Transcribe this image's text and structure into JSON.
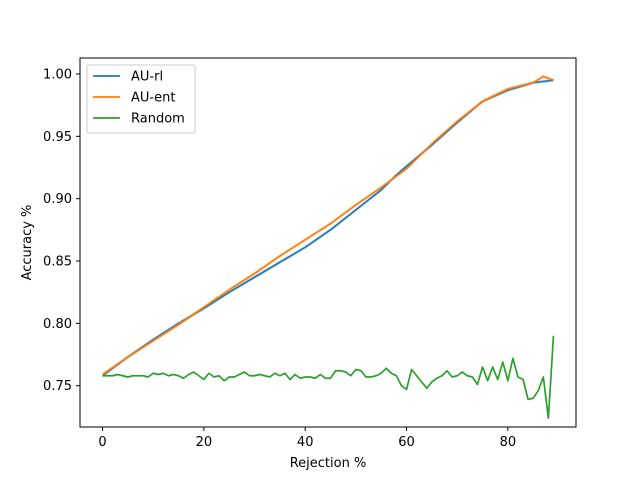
{
  "chart_data": {
    "type": "line",
    "title": "",
    "xlabel": "Rejection %",
    "ylabel": "Accuracy %",
    "xlim": [
      -4.45,
      93.45
    ],
    "ylim": [
      0.7169,
      1.0128
    ],
    "xticks": [
      0,
      20,
      40,
      60,
      80
    ],
    "yticks": [
      0.75,
      0.8,
      0.85,
      0.9,
      0.95,
      1.0
    ],
    "ytick_labels": [
      "0.75",
      "0.80",
      "0.85",
      "0.90",
      "0.95",
      "1.00"
    ],
    "grid": false,
    "legend_position": "top-left",
    "series": [
      {
        "name": "AU-rl",
        "color": "#1f77b4",
        "band": true,
        "x": [
          0,
          5,
          10,
          15,
          20,
          25,
          30,
          35,
          40,
          45,
          50,
          55,
          58,
          60,
          65,
          70,
          75,
          80,
          85,
          89
        ],
        "y": [
          0.758,
          0.773,
          0.787,
          0.8,
          0.812,
          0.825,
          0.837,
          0.849,
          0.861,
          0.875,
          0.891,
          0.907,
          0.919,
          0.926,
          0.943,
          0.961,
          0.978,
          0.987,
          0.993,
          0.995
        ]
      },
      {
        "name": "AU-ent",
        "color": "#ff7f0e",
        "band": true,
        "x": [
          0,
          5,
          10,
          15,
          20,
          25,
          30,
          35,
          40,
          45,
          50,
          55,
          58,
          60,
          65,
          70,
          75,
          80,
          85,
          87,
          89
        ],
        "y": [
          0.759,
          0.773,
          0.786,
          0.799,
          0.813,
          0.827,
          0.84,
          0.854,
          0.867,
          0.88,
          0.895,
          0.909,
          0.918,
          0.924,
          0.944,
          0.962,
          0.978,
          0.988,
          0.993,
          0.998,
          0.995
        ]
      },
      {
        "name": "Random",
        "color": "#2ca02c",
        "band": false,
        "x": [
          0,
          1,
          2,
          3,
          4,
          5,
          6,
          7,
          8,
          9,
          10,
          11,
          12,
          13,
          14,
          15,
          16,
          17,
          18,
          19,
          20,
          21,
          22,
          23,
          24,
          25,
          26,
          27,
          28,
          29,
          30,
          31,
          32,
          33,
          34,
          35,
          36,
          37,
          38,
          39,
          40,
          41,
          42,
          43,
          44,
          45,
          46,
          47,
          48,
          49,
          50,
          51,
          52,
          53,
          54,
          55,
          56,
          57,
          58,
          59,
          60,
          61,
          62,
          63,
          64,
          65,
          66,
          67,
          68,
          69,
          70,
          71,
          72,
          73,
          74,
          75,
          76,
          77,
          78,
          79,
          80,
          81,
          82,
          83,
          84,
          85,
          86,
          87,
          88,
          89
        ],
        "y": [
          0.758,
          0.758,
          0.758,
          0.759,
          0.758,
          0.757,
          0.758,
          0.758,
          0.758,
          0.757,
          0.76,
          0.759,
          0.76,
          0.758,
          0.759,
          0.758,
          0.756,
          0.759,
          0.761,
          0.758,
          0.755,
          0.76,
          0.757,
          0.758,
          0.754,
          0.757,
          0.757,
          0.759,
          0.761,
          0.758,
          0.758,
          0.759,
          0.758,
          0.757,
          0.76,
          0.758,
          0.76,
          0.755,
          0.759,
          0.756,
          0.757,
          0.757,
          0.756,
          0.759,
          0.756,
          0.756,
          0.762,
          0.762,
          0.761,
          0.758,
          0.763,
          0.762,
          0.757,
          0.757,
          0.758,
          0.76,
          0.764,
          0.76,
          0.758,
          0.75,
          0.747,
          0.763,
          0.758,
          0.753,
          0.748,
          0.753,
          0.756,
          0.758,
          0.762,
          0.757,
          0.758,
          0.761,
          0.758,
          0.757,
          0.751,
          0.765,
          0.754,
          0.765,
          0.755,
          0.769,
          0.754,
          0.772,
          0.757,
          0.755,
          0.739,
          0.74,
          0.746,
          0.757,
          0.724,
          0.79
        ]
      }
    ]
  }
}
